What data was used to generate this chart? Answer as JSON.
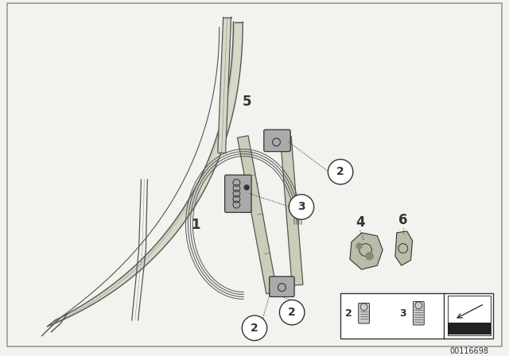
{
  "bg_color": "#f2f2ee",
  "part_number": "00116698",
  "gray1": "#555555",
  "gray2": "#333333",
  "gray3": "#999999",
  "gray4": "#bbbbbb",
  "white": "#ffffff"
}
